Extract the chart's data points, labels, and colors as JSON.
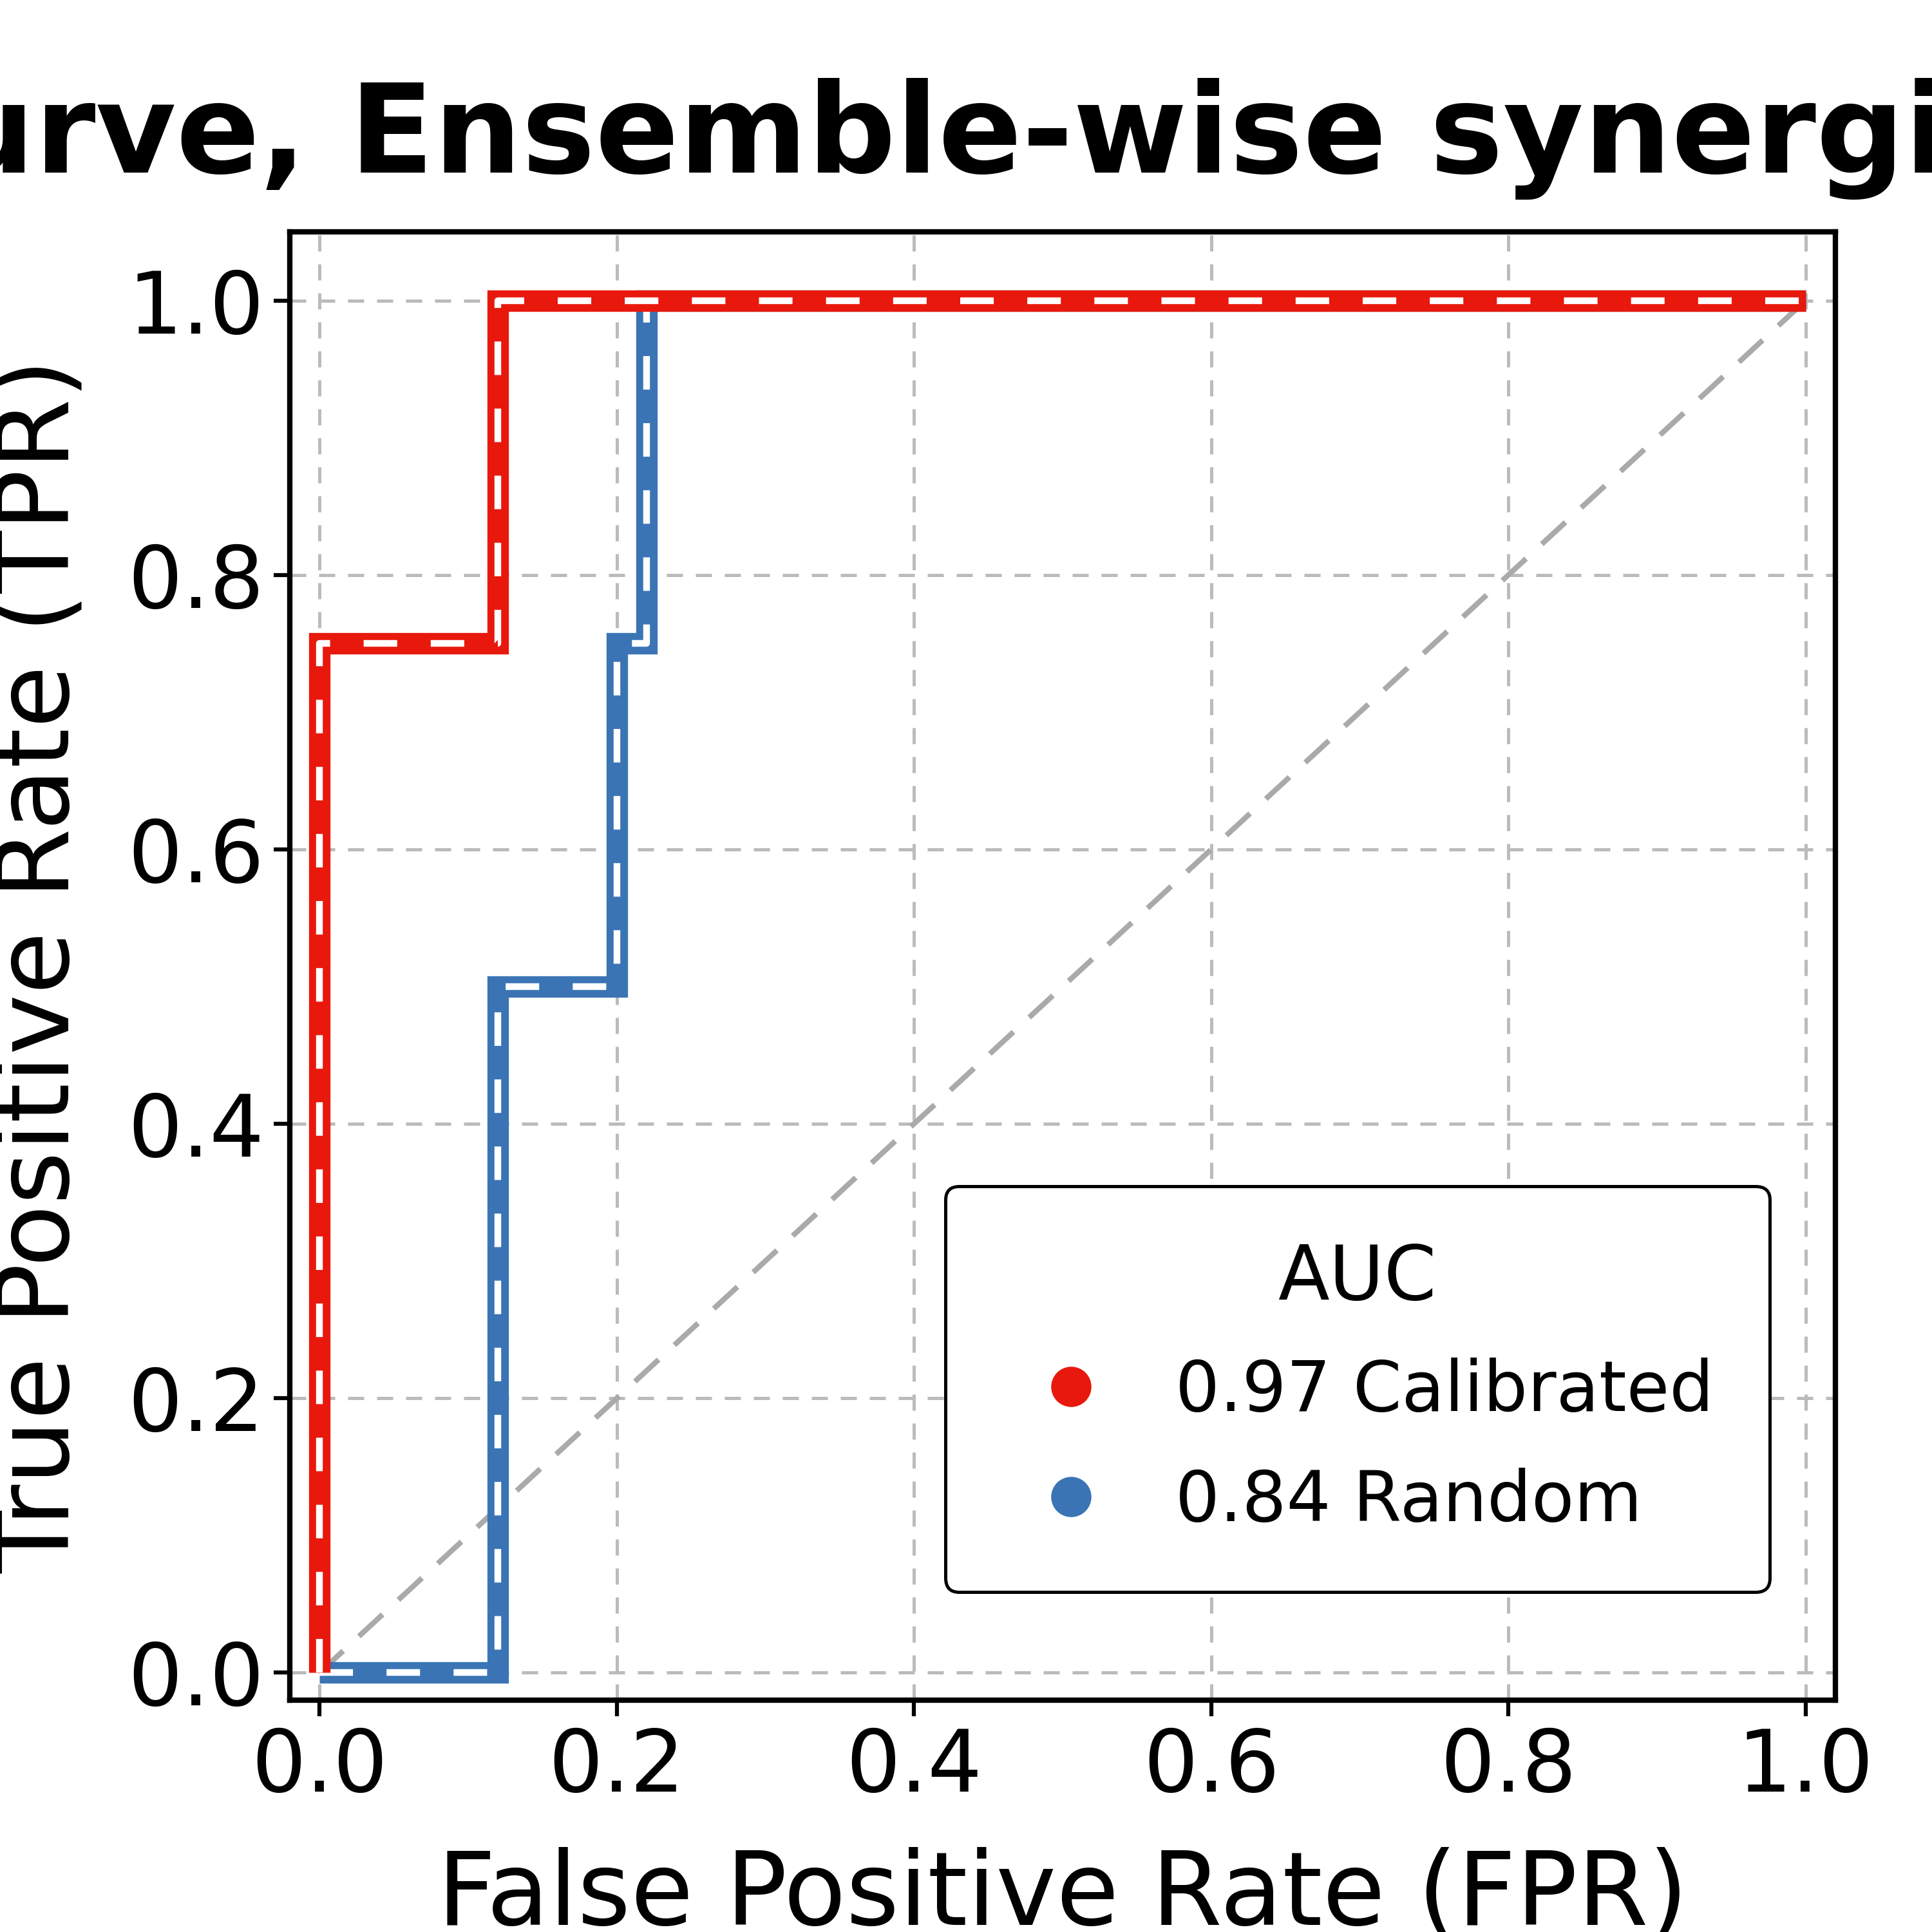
{
  "title": "ROC curve, Ensemble-wise synergies (Bliss)",
  "xlabel": "False Positive Rate (FPR)",
  "ylabel": "True Positive Rate (TPR)",
  "background_color": "#ffffff",
  "plot_bg_color": "#ffffff",
  "grid_color": "#bbbbbb",
  "diagonal_color": "#aaaaaa",
  "red_curve": {
    "x": [
      0.0,
      0.0,
      0.12,
      0.12,
      1.0
    ],
    "y": [
      0.0,
      0.75,
      0.75,
      1.0,
      1.0
    ],
    "color": "#e8180c",
    "linewidth": 8.0,
    "label": "0.97 Calibrated"
  },
  "red_curve_overlay": {
    "x": [
      0.0,
      0.0,
      0.12,
      0.12,
      1.0
    ],
    "y": [
      0.0,
      0.75,
      0.75,
      1.0,
      1.0
    ],
    "color": "#ffffff",
    "linewidth": 2.5,
    "linestyle": "--"
  },
  "blue_curve": {
    "x": [
      0.0,
      0.12,
      0.12,
      0.2,
      0.2,
      0.22,
      0.22,
      1.0
    ],
    "y": [
      0.0,
      0.0,
      0.5,
      0.5,
      0.75,
      0.75,
      1.0,
      1.0
    ],
    "color": "#3a74b5",
    "linewidth": 8.0,
    "label": "0.84 Random"
  },
  "blue_curve_overlay": {
    "x": [
      0.0,
      0.12,
      0.12,
      0.2,
      0.2,
      0.22,
      0.22,
      1.0
    ],
    "y": [
      0.0,
      0.0,
      0.5,
      0.5,
      0.75,
      0.75,
      1.0,
      1.0
    ],
    "color": "#ffffff",
    "linewidth": 2.5,
    "linestyle": "--"
  },
  "diagonal": {
    "x": [
      0.0,
      1.0
    ],
    "y": [
      0.0,
      1.0
    ],
    "color": "#aaaaaa",
    "linewidth": 2.0,
    "linestyle": "--"
  },
  "legend_title": "AUC",
  "legend_title_fontsize": 28,
  "legend_fontsize": 26,
  "legend_loc": "lower right",
  "title_fontsize": 46,
  "label_fontsize": 38,
  "tick_fontsize": 32,
  "xlim": [
    -0.02,
    1.02
  ],
  "ylim": [
    -0.02,
    1.05
  ],
  "xticks": [
    0.0,
    0.2,
    0.4,
    0.6,
    0.8,
    1.0
  ],
  "yticks": [
    0.0,
    0.2,
    0.4,
    0.6,
    0.8,
    1.0
  ],
  "xtick_labels": [
    "0.0",
    "0.2",
    "0.4",
    "0.6",
    "0.8",
    "1.0"
  ],
  "ytick_labels": [
    "0.0",
    "0.2",
    "0.4",
    "0.6",
    "0.8",
    "1.0"
  ]
}
